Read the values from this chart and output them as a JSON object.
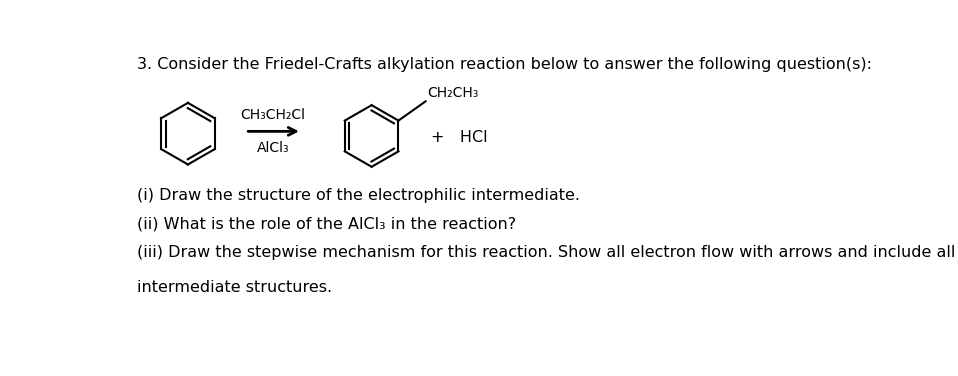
{
  "title_text": "3. Consider the Friedel-Crafts alkylation reaction below to answer the following question(s):",
  "reagent_line1": "CH₃CH₂Cl",
  "reagent_line2": "AlCl₃",
  "product_label": "CH₂CH₃",
  "byproduct": "+   HCl",
  "question_i": "(i) Draw the structure of the electrophilic intermediate.",
  "question_ii": "(ii) What is the role of the AlCl₃ in the reaction?",
  "question_iii": "(iii) Draw the stepwise mechanism for this reaction. Show all electron flow with arrows and include all",
  "question_iii_cont": "intermediate structures.",
  "bg_color": "#ffffff",
  "text_color": "#000000",
  "font_size_title": 11.5,
  "font_size_body": 11.5,
  "font_size_chem": 10.0
}
